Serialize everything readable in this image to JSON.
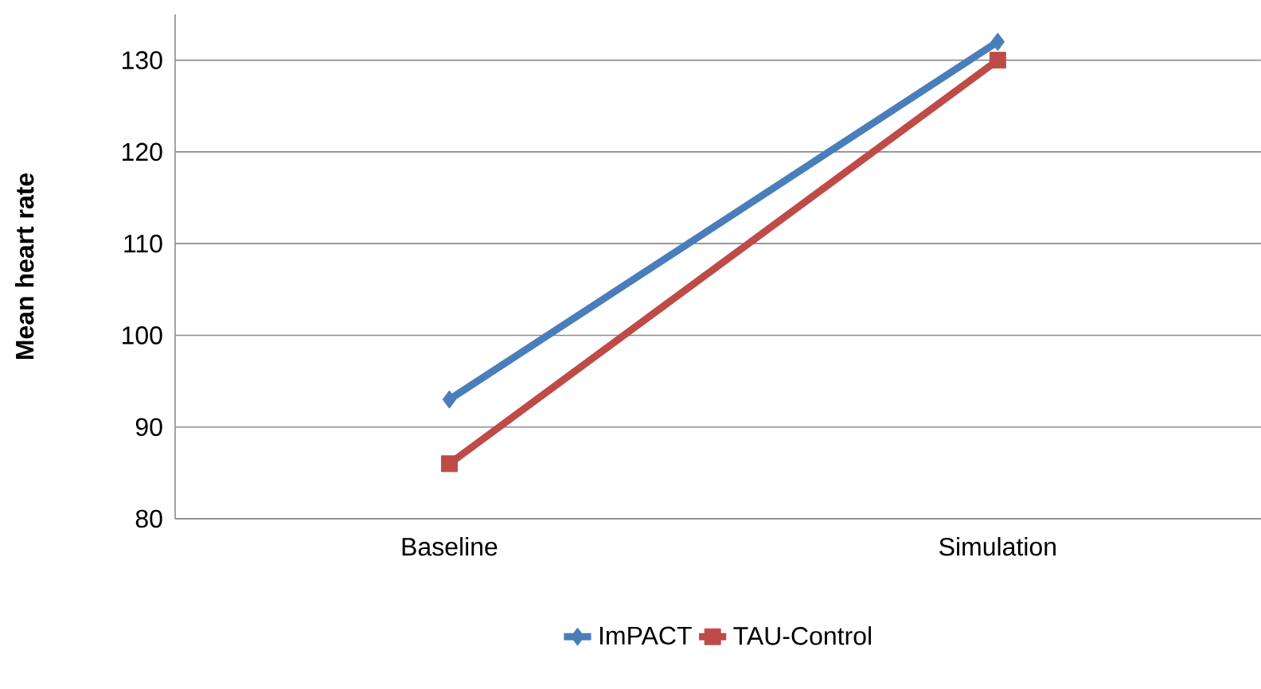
{
  "chart_data": {
    "type": "line",
    "ylabel": "Mean heart rate",
    "categories": [
      "Baseline",
      "Simulation"
    ],
    "series": [
      {
        "name": "ImPACT",
        "color": "#4a7ebb",
        "marker": "diamond",
        "values": [
          93,
          132
        ]
      },
      {
        "name": "TAU-Control",
        "color": "#be4b48",
        "marker": "square",
        "values": [
          86,
          130
        ]
      }
    ],
    "ylim": [
      80,
      135
    ],
    "yticks": [
      80,
      90,
      100,
      110,
      120,
      130
    ],
    "grid": "y",
    "legend": "bottom",
    "line_style": "solid"
  }
}
